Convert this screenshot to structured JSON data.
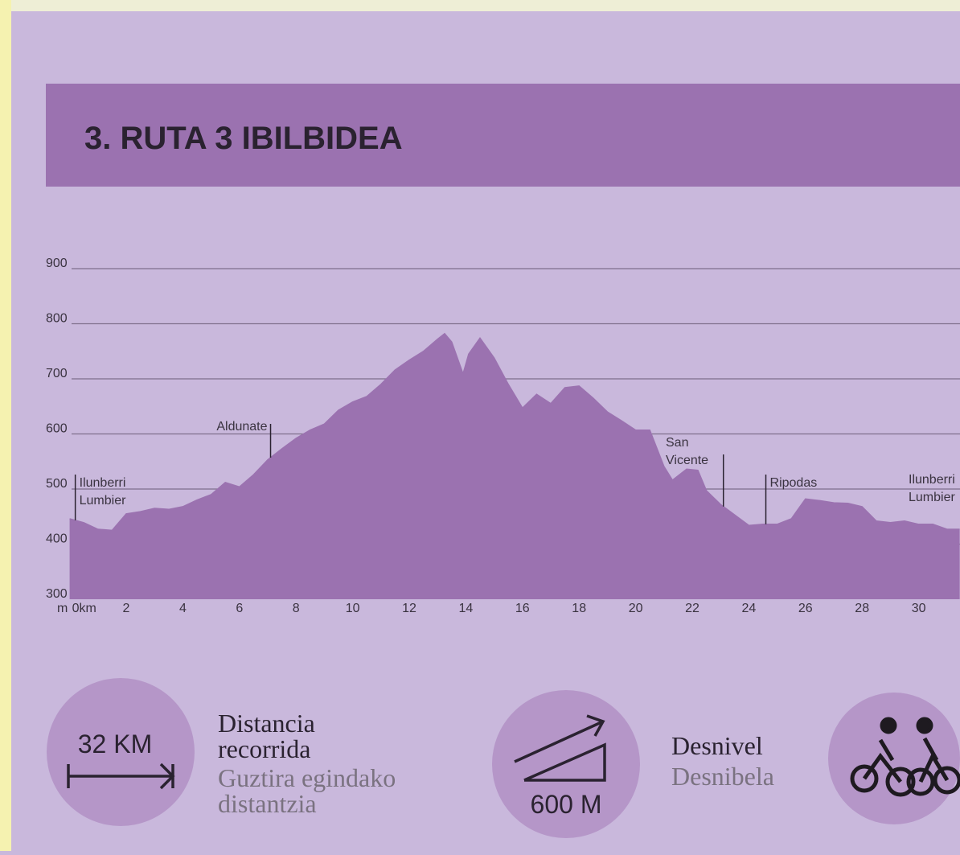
{
  "header": {
    "title": "3. RUTA 3 IBILBIDEA"
  },
  "chart_data": {
    "type": "area",
    "color": "#9b72b0",
    "y_unit": "m",
    "x": [
      0,
      0.5,
      1,
      1.5,
      2,
      2.5,
      3,
      3.5,
      4,
      4.5,
      5,
      5.5,
      6,
      6.5,
      7,
      7.5,
      8,
      8.5,
      9,
      9.5,
      10,
      10.5,
      11,
      11.5,
      12,
      12.5,
      13,
      13.25,
      13.5,
      13.9,
      14.1,
      14.5,
      15,
      15.5,
      16,
      16.5,
      17,
      17.5,
      18,
      18.5,
      19,
      19.5,
      20,
      20.5,
      21,
      21.3,
      21.8,
      22.2,
      22.5,
      23,
      23.5,
      24,
      24.5,
      25,
      25.5,
      26,
      26.5,
      27,
      27.5,
      28,
      28.5,
      29,
      29.5,
      30,
      30.5,
      31,
      31.45
    ],
    "values": [
      446,
      439,
      427,
      425,
      455,
      459,
      465,
      463,
      468,
      480,
      490,
      512,
      504,
      526,
      553,
      573,
      592,
      607,
      618,
      643,
      658,
      668,
      690,
      716,
      734,
      750,
      772,
      782,
      767,
      709,
      745,
      774,
      738,
      690,
      647,
      672,
      655,
      684,
      687,
      665,
      640,
      624,
      607,
      607,
      541,
      516,
      536,
      534,
      497,
      472,
      453,
      434,
      436,
      436,
      446,
      482,
      479,
      475,
      474,
      468,
      442,
      439,
      442,
      436,
      436,
      427,
      427
    ],
    "xlim": [
      0,
      31.45
    ],
    "xticks": [
      {
        "value": 0,
        "label": "0km"
      },
      2,
      4,
      6,
      8,
      10,
      12,
      14,
      16,
      18,
      20,
      22,
      24,
      26,
      28,
      30
    ],
    "ylim": [
      300,
      900
    ],
    "yticks": [
      300,
      400,
      500,
      600,
      700,
      800,
      900
    ],
    "grid": true,
    "annotations": [
      {
        "x": 0.2,
        "lines": [
          "Ilunberri",
          "Lumbier"
        ]
      },
      {
        "x": 7.1,
        "lines": [
          "Aldunate"
        ]
      },
      {
        "x": 23.1,
        "lines": [
          "San",
          "Vicente"
        ]
      },
      {
        "x": 24.6,
        "lines": [
          "Ripodas"
        ]
      },
      {
        "x": 29.7,
        "lines": [
          "Ilunberri",
          "Lumbier"
        ]
      }
    ]
  },
  "stats": {
    "distance": {
      "value": "32 KM",
      "label": [
        "Distancia",
        "recorrida"
      ],
      "sublabel": [
        "Guztira egindako",
        "distantzia"
      ]
    },
    "elevation": {
      "value": "600 M",
      "label": [
        "Desnivel"
      ],
      "sublabel": [
        "Desnibela"
      ]
    }
  }
}
